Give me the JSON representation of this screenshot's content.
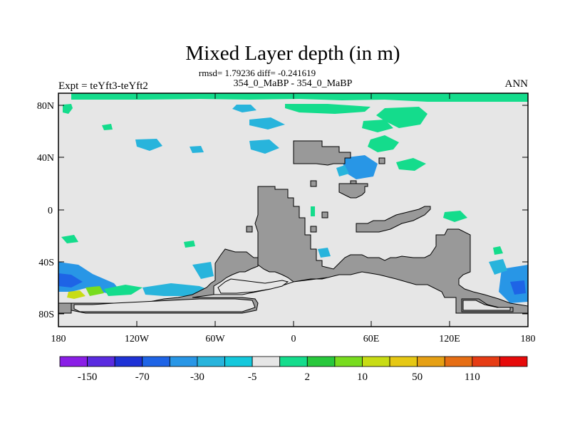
{
  "title": "Mixed Layer depth (in m)",
  "stats_line": "rmsd= 1.79236 diff= -0.241619",
  "case_line": "354_0_MaBP - 354_0_MaBP",
  "expt_label": "Expt = teYft3-teYft2",
  "season_label": "ANN",
  "axes": {
    "lat_ticks": [
      "80N",
      "40N",
      "0",
      "40S",
      "80S"
    ],
    "lon_ticks": [
      "180",
      "120W",
      "60W",
      "0",
      "60E",
      "120E",
      "180"
    ]
  },
  "colorbar": {
    "colors": [
      "#8a1ee6",
      "#5a2be0",
      "#1e32d6",
      "#1e64e6",
      "#2896e6",
      "#28b4dc",
      "#14c8dc",
      "#e6e6e6",
      "#14dc8c",
      "#28c83c",
      "#78dc1e",
      "#c8dc14",
      "#e6c814",
      "#e6a014",
      "#e66e14",
      "#e63c14",
      "#e60a0a"
    ],
    "labels": [
      "-150",
      "-70",
      "-30",
      "-5",
      "2",
      "10",
      "50",
      "110"
    ]
  },
  "map_colors": {
    "ocean_no_change": "#e6e6e6",
    "land": "#999999",
    "green": "#14dc8c",
    "cyan": "#28b4dc",
    "blue": "#2896e6",
    "deep_blue": "#1e64e6",
    "yellow": "#c8dc14",
    "lime": "#78dc1e"
  }
}
